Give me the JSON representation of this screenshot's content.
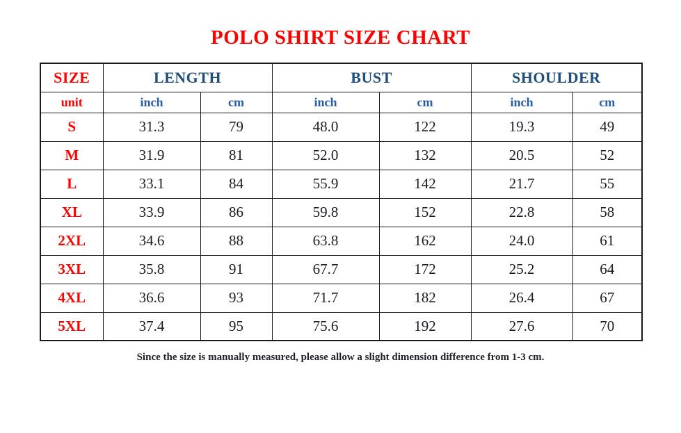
{
  "title": "POLO SHIRT SIZE CHART",
  "chart_data": {
    "type": "table",
    "title": "POLO SHIRT SIZE CHART",
    "corner_header": "SIZE",
    "group_headers": [
      "LENGTH",
      "BUST",
      "SHOULDER"
    ],
    "unit_row": [
      "unit",
      "inch",
      "cm",
      "inch",
      "cm",
      "inch",
      "cm"
    ],
    "columns": [
      "SIZE",
      "LENGTH inch",
      "LENGTH cm",
      "BUST inch",
      "BUST cm",
      "SHOULDER inch",
      "SHOULDER cm"
    ],
    "rows": [
      {
        "size": "S",
        "values": [
          "31.3",
          "79",
          "48.0",
          "122",
          "19.3",
          "49"
        ]
      },
      {
        "size": "M",
        "values": [
          "31.9",
          "81",
          "52.0",
          "132",
          "20.5",
          "52"
        ]
      },
      {
        "size": "L",
        "values": [
          "33.1",
          "84",
          "55.9",
          "142",
          "21.7",
          "55"
        ]
      },
      {
        "size": "XL",
        "values": [
          "33.9",
          "86",
          "59.8",
          "152",
          "22.8",
          "58"
        ]
      },
      {
        "size": "2XL",
        "values": [
          "34.6",
          "88",
          "63.8",
          "162",
          "24.0",
          "61"
        ]
      },
      {
        "size": "3XL",
        "values": [
          "35.8",
          "91",
          "67.7",
          "172",
          "25.2",
          "64"
        ]
      },
      {
        "size": "4XL",
        "values": [
          "36.6",
          "93",
          "71.7",
          "182",
          "26.4",
          "67"
        ]
      },
      {
        "size": "5XL",
        "values": [
          "37.4",
          "95",
          "75.6",
          "192",
          "27.6",
          "70"
        ]
      }
    ]
  },
  "footer": {
    "note": "Since the size is manually measured, please allow a slight dimension difference from 1-3 cm."
  },
  "colors": {
    "title_red": "#ff0000",
    "size_label_red": "#ff0000",
    "group_header_blue": "#1f4e79",
    "unit_blue": "#2a5d9f",
    "data_text": "#1b1b26",
    "border": "#1a1a1a",
    "footer_text": "#22222e",
    "background": "#ffffff"
  }
}
